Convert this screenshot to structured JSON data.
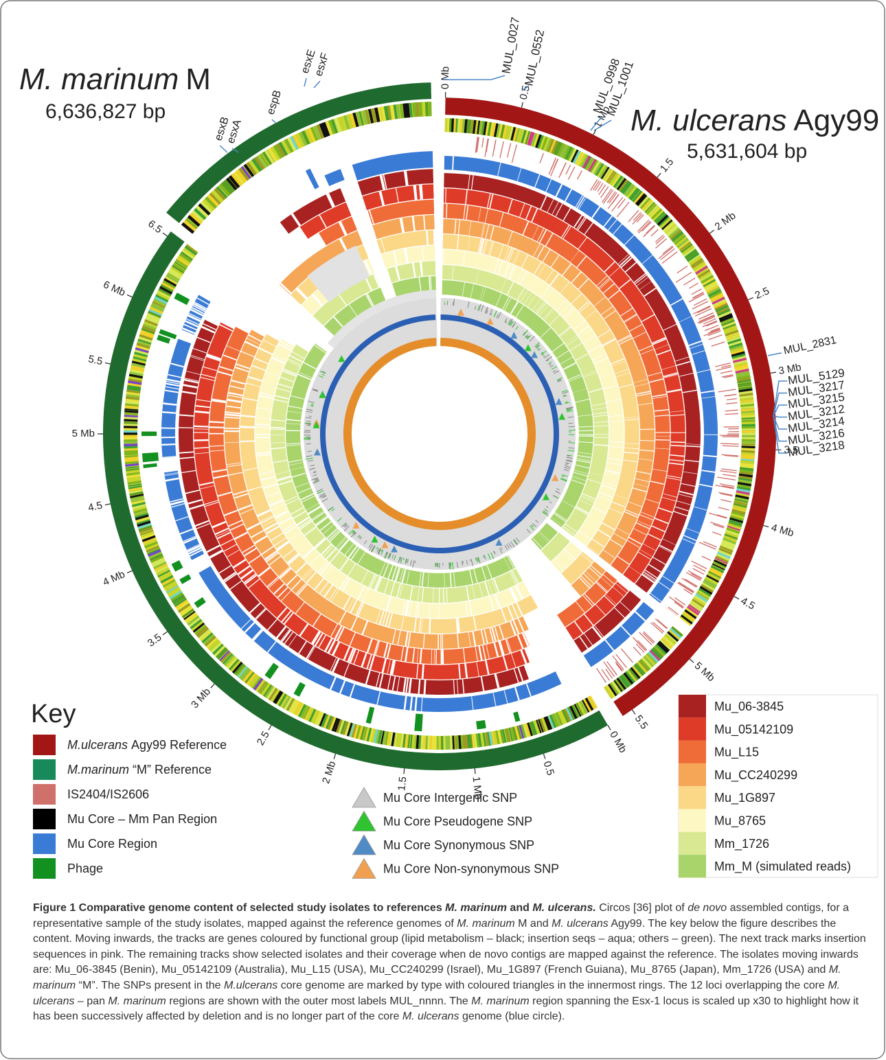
{
  "figure": {
    "marinum": {
      "name": "M. marinum",
      "strain": "M",
      "size": "6,636,827 bp"
    },
    "ulcerans": {
      "name": "M. ulcerans",
      "strain": "Agy99",
      "size": "5,631,604 bp"
    },
    "ulcerans_ticks": [
      "0 Mb",
      "0.5",
      "1 Mb",
      "1.5",
      "2 Mb",
      "2.5",
      "3 Mb",
      "3.5",
      "4 Mb",
      "4.5",
      "5 Mb",
      "5.5"
    ],
    "marinum_ticks": [
      "0 Mb",
      "0.5",
      "1 Mb",
      "1.5",
      "2 Mb",
      "2.5",
      "3 Mb",
      "3.5",
      "4 Mb",
      "4.5",
      "5 Mb",
      "5.5",
      "6 Mb",
      "6.5"
    ],
    "loci_top": [
      "MUL_0027",
      "MUL_0552",
      "MUL_0998",
      "MUL_1001"
    ],
    "locus_side": "MUL_2831",
    "loci_stack": [
      "MUL_5129",
      "MUL_3217",
      "MUL_3215",
      "MUL_3212",
      "MUL_3214",
      "MUL_3216",
      "MUL_3218"
    ],
    "esx_labels": [
      "esxF",
      "esxE",
      "espB",
      "esxA",
      "esxB"
    ]
  },
  "key": {
    "title": "Key",
    "items": [
      {
        "em": "M.ulcerans",
        "text": "Agy99 Reference",
        "color": "#a31616"
      },
      {
        "em": "M.marinum",
        "text": "“M” Reference",
        "color": "#17895a"
      },
      {
        "text": "IS2404/IS2606",
        "color": "#d0706a"
      },
      {
        "text": "Mu Core – Mm Pan Region",
        "color": "#000000"
      },
      {
        "text": "Mu Core Region",
        "color": "#3a7bd5"
      },
      {
        "text": "Phage",
        "color": "#129020"
      }
    ]
  },
  "snp_key": [
    {
      "text": "Mu Core Intergenic SNP",
      "color": "#c8c8c8"
    },
    {
      "text": "Mu Core Pseudogene SNP",
      "color": "#2fc42f"
    },
    {
      "text": "Mu Core Synonymous SNP",
      "color": "#4f8bc4"
    },
    {
      "text": "Mu Core Non-synonymous SNP",
      "color": "#f0a050"
    }
  ],
  "isolates": [
    {
      "text": "Mu_06-3845",
      "color": "#a82222"
    },
    {
      "text": "Mu_05142109",
      "color": "#de3b28"
    },
    {
      "text": "Mu_L15",
      "color": "#ef6c38"
    },
    {
      "text": "Mu_CC240299",
      "color": "#f6a657"
    },
    {
      "text": "Mu_1G897",
      "color": "#fbd888"
    },
    {
      "text": "Mu_8765",
      "color": "#fdf7c3"
    },
    {
      "text": "Mm_1726",
      "color": "#d9e993"
    },
    {
      "text": "Mm_M (simulated reads)",
      "color": "#a9d46c"
    }
  ],
  "caption": {
    "title": [
      {
        "text": "Figure 1  Comparative genome content of selected study isolates to references "
      },
      {
        "text": "M. marinum",
        "italic": true
      },
      {
        "text": " and "
      },
      {
        "text": "M. ulcerans.",
        "italic": true
      }
    ],
    "body": [
      {
        "text": " Circos [36] plot of "
      },
      {
        "text": "de novo",
        "italic": true
      },
      {
        "text": " assembled contigs, for a representative sample of the study isolates, mapped against the reference genomes of "
      },
      {
        "text": "M. marinum",
        "italic": true
      },
      {
        "text": " M and "
      },
      {
        "text": "M. ulcerans",
        "italic": true
      },
      {
        "text": " Agy99. The key below the figure describes the content. Moving inwards, the tracks are genes coloured by functional group (lipid metabolism – black; insertion seqs – aqua; others – green). The next track marks insertion sequences in pink. The remaining tracks show selected isolates and their coverage when de novo contigs are mapped against the reference. The isolates moving inwards are: Mu_06-3845 (Benin), Mu_05142109 (Australia), Mu_L15 (USA), Mu_CC240299 (Israel), Mu_1G897 (French Guiana), Mu_8765 (Japan), Mm_1726 (USA) and "
      },
      {
        "text": "M. marinum",
        "italic": true
      },
      {
        "text": " “M”. The SNPs present in the "
      },
      {
        "text": "M.ulcerans",
        "italic": true
      },
      {
        "text": " core genome are marked by type with coloured triangles in the innermost rings. The 12 loci overlapping the core "
      },
      {
        "text": "M. ulcerans",
        "italic": true
      },
      {
        "text": " – pan "
      },
      {
        "text": "M. marinum",
        "italic": true
      },
      {
        "text": " regions are shown with the outer most labels MUL_nnnn. The "
      },
      {
        "text": "M. marinum",
        "italic": true
      },
      {
        "text": " region spanning the Esx-1 locus is scaled up x30 to highlight how it has been successively affected by deletion and is no longer part of the core "
      },
      {
        "text": "M. ulcerans",
        "italic": true
      },
      {
        "text": " genome (blue circle)."
      }
    ]
  }
}
